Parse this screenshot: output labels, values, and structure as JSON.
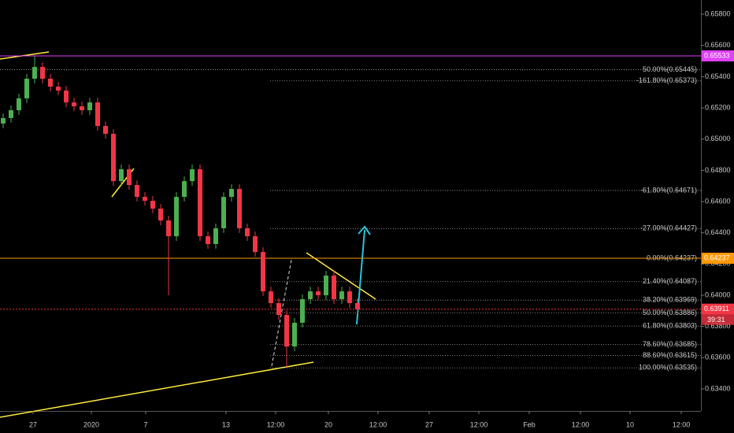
{
  "chart_data": {
    "type": "candlestick",
    "up_color": "#4caf50",
    "down_color": "#f23645",
    "x": [
      0,
      1,
      2,
      3,
      4,
      5,
      6,
      7,
      8,
      9,
      10,
      11,
      12,
      13,
      14,
      15,
      16,
      17,
      18,
      19,
      20,
      21,
      22,
      23,
      24,
      25,
      26,
      27,
      28,
      29,
      30,
      31,
      32,
      33,
      34,
      35,
      36,
      37,
      38,
      39,
      40,
      41,
      42,
      43,
      44,
      45
    ],
    "open": [
      0.651,
      0.65135,
      0.65185,
      0.65261,
      0.65387,
      0.65462,
      0.65387,
      0.65336,
      0.65311,
      0.65235,
      0.6521,
      0.65185,
      0.65235,
      0.65084,
      0.65034,
      0.64731,
      0.64807,
      0.64706,
      0.6463,
      0.64605,
      0.64555,
      0.64479,
      0.64378,
      0.6463,
      0.64731,
      0.64807,
      0.64378,
      0.64328,
      0.64429,
      0.6463,
      0.64681,
      0.64429,
      0.64378,
      0.64277,
      0.64025,
      0.6395,
      0.63874,
      0.63672,
      0.63824,
      0.63975,
      0.64025,
      0.64,
      0.64126,
      0.63975,
      0.64025,
      0.6395
    ],
    "high": [
      0.65165,
      0.65215,
      0.65291,
      0.65417,
      0.6553,
      0.65492,
      0.65417,
      0.65366,
      0.65341,
      0.65265,
      0.6524,
      0.65265,
      0.65265,
      0.65114,
      0.65064,
      0.64837,
      0.64837,
      0.64736,
      0.6466,
      0.64635,
      0.64585,
      0.64509,
      0.6466,
      0.64761,
      0.64837,
      0.64837,
      0.64408,
      0.64459,
      0.6466,
      0.64711,
      0.64711,
      0.64459,
      0.64408,
      0.64307,
      0.64055,
      0.6398,
      0.63904,
      0.63854,
      0.64005,
      0.64055,
      0.64055,
      0.64156,
      0.64156,
      0.64055,
      0.64055,
      0.6398
    ],
    "low": [
      0.6507,
      0.65105,
      0.65155,
      0.65231,
      0.65357,
      0.65357,
      0.65306,
      0.65281,
      0.65205,
      0.6518,
      0.65155,
      0.65155,
      0.65054,
      0.65004,
      0.64701,
      0.64701,
      0.64676,
      0.646,
      0.64575,
      0.64525,
      0.64449,
      0.64,
      0.64348,
      0.646,
      0.64701,
      0.64348,
      0.64298,
      0.64298,
      0.64399,
      0.646,
      0.64399,
      0.64348,
      0.64247,
      0.63995,
      0.6392,
      0.63844,
      0.63535,
      0.63642,
      0.63794,
      0.63945,
      0.6397,
      0.6397,
      0.63945,
      0.63945,
      0.6392,
      0.63881
    ],
    "close": [
      0.65135,
      0.65185,
      0.65261,
      0.65387,
      0.65462,
      0.65387,
      0.65336,
      0.65311,
      0.65235,
      0.6521,
      0.65185,
      0.65235,
      0.65084,
      0.65034,
      0.64731,
      0.64807,
      0.64706,
      0.6463,
      0.64605,
      0.64555,
      0.64479,
      0.64378,
      0.6463,
      0.64731,
      0.64807,
      0.64378,
      0.64328,
      0.64429,
      0.6463,
      0.64681,
      0.64429,
      0.64378,
      0.64277,
      0.64025,
      0.6395,
      0.63874,
      0.63672,
      0.63824,
      0.63975,
      0.64025,
      0.64,
      0.64126,
      0.63975,
      0.64025,
      0.6395,
      0.63911
    ],
    "xlim": [
      -0.4,
      88.6
    ],
    "ylim": [
      0.63259,
      0.65891
    ],
    "xticks": [
      {
        "value": 3.8,
        "label": "27"
      },
      {
        "value": 11.2,
        "label": "2020"
      },
      {
        "value": 18.1,
        "label": "7"
      },
      {
        "value": 28.3,
        "label": "13"
      },
      {
        "value": 34.6,
        "label": "12:00"
      },
      {
        "value": 41.3,
        "label": "20"
      },
      {
        "value": 47.6,
        "label": "12:00"
      },
      {
        "value": 54.1,
        "label": "27"
      },
      {
        "value": 60.4,
        "label": "12:00"
      },
      {
        "value": 66.8,
        "label": "Feb"
      },
      {
        "value": 73.3,
        "label": "12:00"
      },
      {
        "value": 79.6,
        "label": "10"
      },
      {
        "value": 86.1,
        "label": "12:00"
      }
    ],
    "yticks": [
      {
        "value": 0.658,
        "label": "0.65800"
      },
      {
        "value": 0.656,
        "label": "0.65600"
      },
      {
        "value": 0.654,
        "label": "0.65400"
      },
      {
        "value": 0.652,
        "label": "0.65200"
      },
      {
        "value": 0.65,
        "label": "0.65000"
      },
      {
        "value": 0.648,
        "label": "0.64800"
      },
      {
        "value": 0.646,
        "label": "0.64600"
      },
      {
        "value": 0.644,
        "label": "0.64400"
      },
      {
        "value": 0.642,
        "label": "0.64200"
      },
      {
        "value": 0.64,
        "label": "0.64000"
      },
      {
        "value": 0.638,
        "label": "0.63800"
      },
      {
        "value": 0.636,
        "label": "0.63600"
      },
      {
        "value": 0.634,
        "label": "0.63400"
      }
    ],
    "levels": [
      {
        "value": 0.65533,
        "color": "#e040fb"
      },
      {
        "value": 0.64237,
        "color": "#ff9800"
      },
      {
        "value": 0.63911,
        "color": "#f23645"
      }
    ],
    "countdown": "39:31",
    "fib_levels": [
      {
        "value": 0.65445,
        "label": "50.00%(0.65445)"
      },
      {
        "value": 0.65373,
        "label": "-161.80%(0.65373)"
      },
      {
        "value": 0.64671,
        "label": "-61.80%(0.64671)"
      },
      {
        "value": 0.64427,
        "label": "-27.00%(0.64427)"
      },
      {
        "value": 0.64237,
        "label": "0.00%(0.64237)"
      },
      {
        "value": 0.64087,
        "label": "21.40%(0.64087)"
      },
      {
        "value": 0.63969,
        "label": "38.20%(0.63969)"
      },
      {
        "value": 0.63886,
        "label": "50.00%(0.63886)"
      },
      {
        "value": 0.63803,
        "label": "61.80%(0.63803)"
      },
      {
        "value": 0.63685,
        "label": "78.60%(0.63685)"
      },
      {
        "value": 0.63615,
        "label": "88.60%(0.63615)"
      },
      {
        "value": 0.63535,
        "label": "100.00%(0.63535)"
      }
    ]
  }
}
